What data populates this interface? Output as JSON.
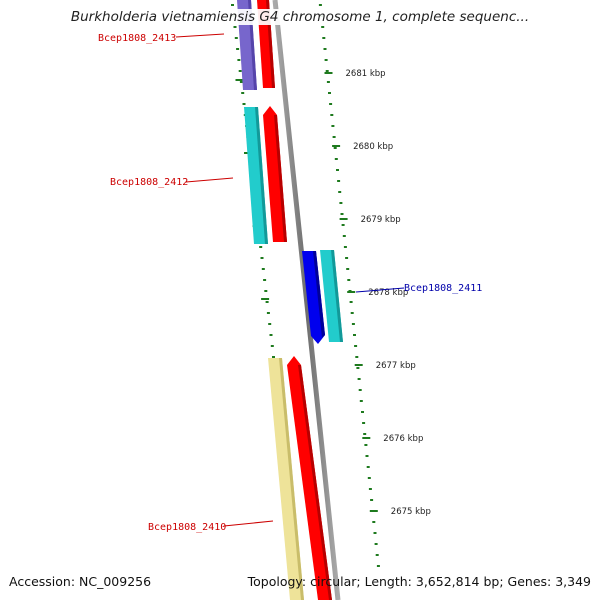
{
  "title": "Burkholderia vietnamiensis G4 chromosome 1, complete sequenc...",
  "accession_text": "Accession: NC_009256",
  "topology_text": "Topology: circular; Length: 3,652,814 bp; Genes: 3,349",
  "colors": {
    "backbone": "#888888",
    "tick": "#1e7a1e",
    "forward_label": "#cc0000",
    "reverse_label": "#0000aa"
  },
  "ticks": [
    "2681 kbp",
    "2680 kbp",
    "2679 kbp",
    "2678 kbp",
    "2677 kbp",
    "2676 kbp",
    "2675 kbp"
  ],
  "genes": [
    {
      "label": "Bcep1808_2413",
      "strand": "forward",
      "color": "#7766cc",
      "arrow_color": "#ff0000"
    },
    {
      "label": "Bcep1808_2412",
      "strand": "forward",
      "color": "#22cccc",
      "arrow_color": "#ff0000"
    },
    {
      "label": "Bcep1808_2411",
      "strand": "reverse",
      "color": "#22cccc",
      "arrow_color": "#0000ee"
    },
    {
      "label": "Bcep1808_2410",
      "strand": "forward",
      "color": "#eee399",
      "arrow_color": "#ff0000"
    }
  ]
}
